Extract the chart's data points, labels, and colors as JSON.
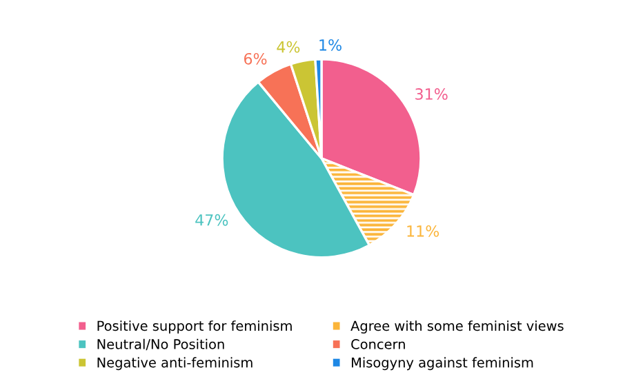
{
  "chart_data": {
    "type": "pie",
    "categories": [
      "Positive support for feminism",
      "Agree with some feminist views",
      "Neutral/No Position",
      "Concern",
      "Negative anti-feminism",
      "Misogyny against feminism"
    ],
    "values": [
      31,
      11,
      47,
      6,
      4,
      1
    ],
    "colors": [
      "#f25f8e",
      "#fbb53a",
      "#4cc3c0",
      "#f77257",
      "#cbc534",
      "#1e88e5"
    ],
    "value_labels": [
      "31%",
      "11%",
      "47%",
      "6%",
      "4%",
      "1%"
    ],
    "legend": "bottom"
  }
}
